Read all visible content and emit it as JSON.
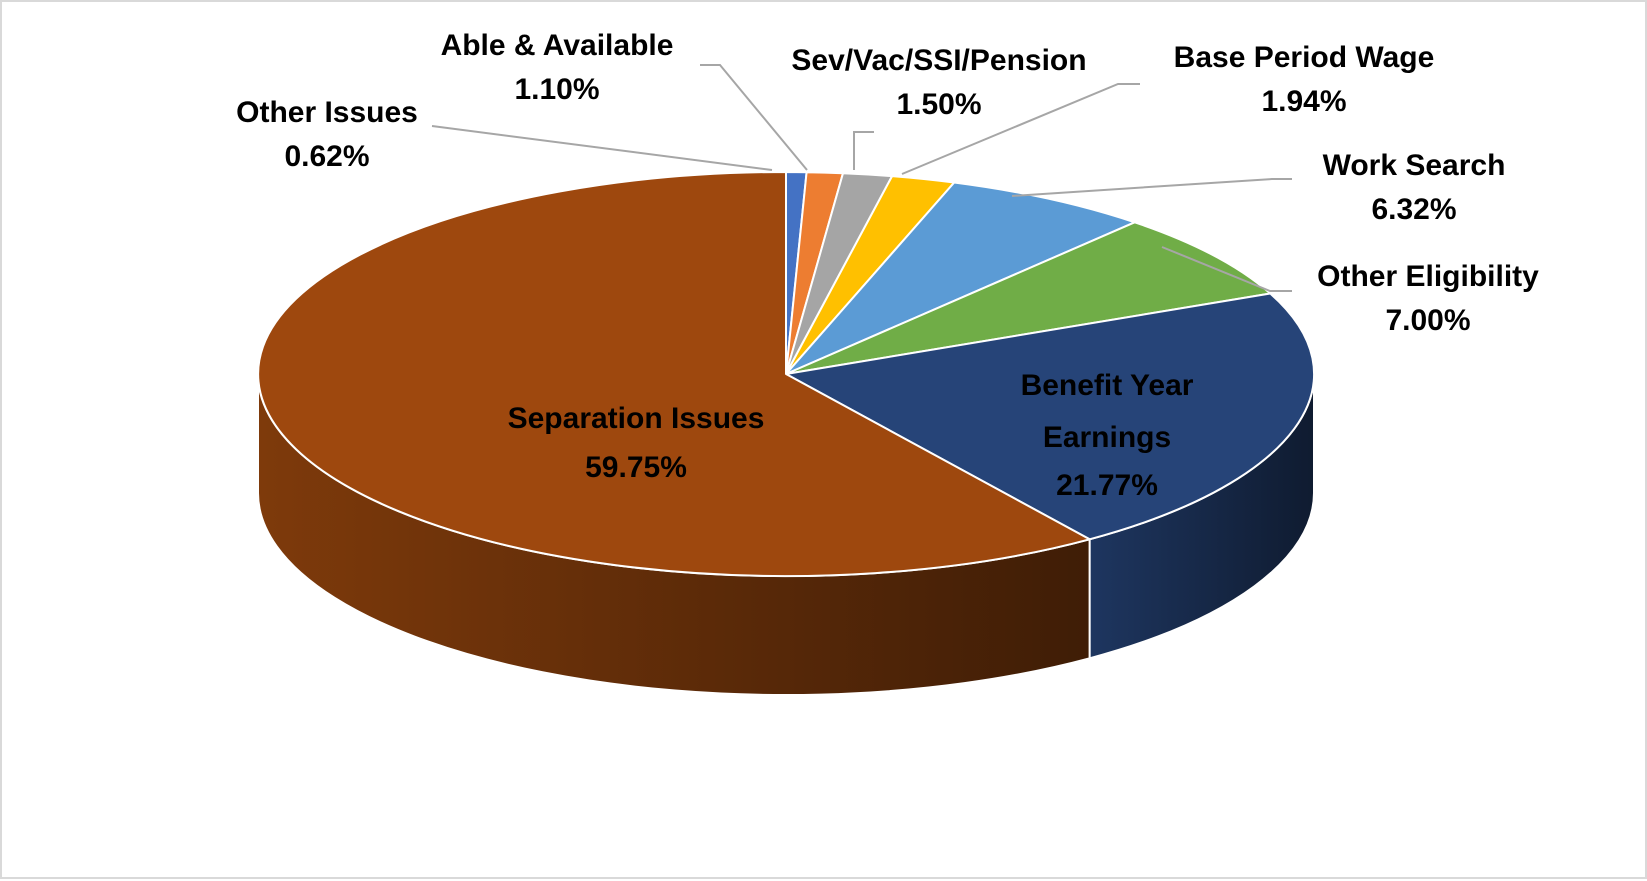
{
  "chart_data": {
    "type": "pie",
    "title": "",
    "style": "3d",
    "start_angle_deg": 0,
    "direction": "clockwise",
    "slices": [
      {
        "label": "Other Issues",
        "pct_label": "0.62%",
        "value": 0.62,
        "color": "#4472c4",
        "label_placement": "outside"
      },
      {
        "label": "Able & Available",
        "pct_label": "1.10%",
        "value": 1.1,
        "color": "#ed7d31",
        "label_placement": "outside"
      },
      {
        "label": "Sev/Vac/SSI/Pension",
        "pct_label": "1.50%",
        "value": 1.5,
        "color": "#a5a5a5",
        "label_placement": "outside"
      },
      {
        "label": "Base Period Wage",
        "pct_label": "1.94%",
        "value": 1.94,
        "color": "#ffc000",
        "label_placement": "outside"
      },
      {
        "label": "Work Search",
        "pct_label": "6.32%",
        "value": 6.32,
        "color": "#5b9bd5",
        "label_placement": "outside"
      },
      {
        "label": "Other Eligibility",
        "pct_label": "7.00%",
        "value": 7.0,
        "color": "#70ad47",
        "label_placement": "outside"
      },
      {
        "label": "Benefit Year Earnings",
        "pct_label": "21.77%",
        "value": 21.77,
        "color": "#264478",
        "label_placement": "inside"
      },
      {
        "label": "Separation Issues",
        "pct_label": "59.75%",
        "value": 59.75,
        "color": "#9e480e",
        "label_placement": "inside"
      }
    ]
  }
}
